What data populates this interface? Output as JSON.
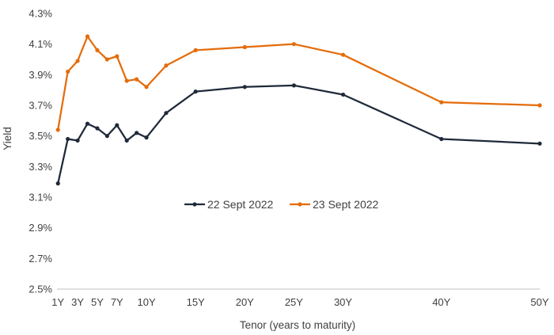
{
  "chart_data": {
    "type": "line",
    "title": "",
    "xlabel": "Tenor (years to maturity)",
    "ylabel": "Yield",
    "x_unit": "years",
    "x_ticks": [
      {
        "value": 1,
        "label": "1Y"
      },
      {
        "value": 3,
        "label": "3Y"
      },
      {
        "value": 5,
        "label": "5Y"
      },
      {
        "value": 7,
        "label": "7Y"
      },
      {
        "value": 10,
        "label": "10Y"
      },
      {
        "value": 15,
        "label": "15Y"
      },
      {
        "value": 20,
        "label": "20Y"
      },
      {
        "value": 25,
        "label": "25Y"
      },
      {
        "value": 30,
        "label": "30Y"
      },
      {
        "value": 40,
        "label": "40Y"
      },
      {
        "value": 50,
        "label": "50Y"
      }
    ],
    "xlim": [
      0.9,
      50
    ],
    "ylim": [
      2.5,
      4.3
    ],
    "y_ticks": [
      2.5,
      2.7,
      2.9,
      3.1,
      3.3,
      3.5,
      3.7,
      3.9,
      4.1,
      4.3
    ],
    "y_tick_format": "%",
    "y_decimals": 1,
    "grid": false,
    "legend_position": "center",
    "series": [
      {
        "name": "22 Sept 2022",
        "color": "#1f2a3a",
        "x": [
          1,
          2,
          3,
          4,
          5,
          6,
          7,
          8,
          9,
          10,
          12,
          15,
          20,
          25,
          30,
          40,
          50
        ],
        "y": [
          3.19,
          3.48,
          3.47,
          3.58,
          3.55,
          3.5,
          3.57,
          3.47,
          3.52,
          3.49,
          3.65,
          3.79,
          3.82,
          3.83,
          3.77,
          3.48,
          3.45
        ]
      },
      {
        "name": "23 Sept 2022",
        "color": "#e46c0a",
        "x": [
          1,
          2,
          3,
          4,
          5,
          6,
          7,
          8,
          9,
          10,
          12,
          15,
          20,
          25,
          30,
          40,
          50
        ],
        "y": [
          3.54,
          3.92,
          3.99,
          4.15,
          4.06,
          4.0,
          4.02,
          3.86,
          3.87,
          3.82,
          3.96,
          4.06,
          4.08,
          4.1,
          4.03,
          3.72,
          3.7
        ]
      }
    ]
  }
}
